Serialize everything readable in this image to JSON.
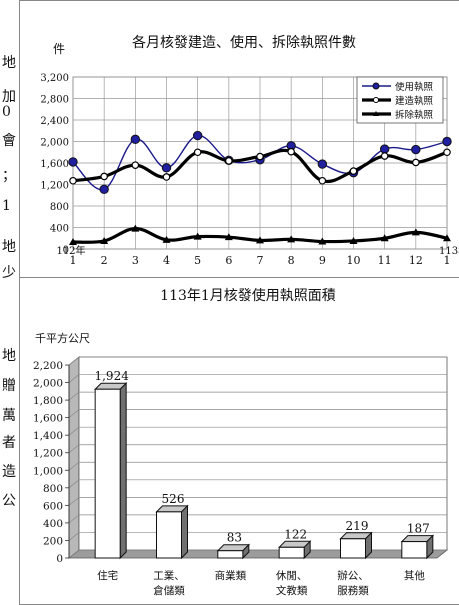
{
  "side_text": [
    "地",
    "加",
    "0",
    "會",
    "；",
    "1",
    "地",
    "少",
    "地",
    "贈",
    "萬",
    "者",
    "造",
    "公"
  ],
  "chart_data": [
    {
      "type": "line",
      "title": "各月核發建造、使用、拆除執照件數",
      "ylabel": "件",
      "ylim": [
        0,
        3200
      ],
      "yticks": [
        0,
        400,
        800,
        1200,
        1600,
        2000,
        2400,
        2800,
        3200
      ],
      "ytick_labels": [
        "0",
        "400",
        "800",
        "1,200",
        "1,600",
        "2,000",
        "2,400",
        "2,800",
        "3,200"
      ],
      "x": [
        1,
        2,
        3,
        4,
        5,
        6,
        7,
        8,
        9,
        10,
        11,
        12,
        13
      ],
      "xtick_labels": [
        "1",
        "2",
        "3",
        "4",
        "5",
        "6",
        "7",
        "8",
        "9",
        "10",
        "11",
        "12",
        "1"
      ],
      "year_labels": [
        {
          "index": 0,
          "text": "112年"
        },
        {
          "index": 12,
          "text": "113年"
        }
      ],
      "grid": true,
      "legend_position": "top-right",
      "series": [
        {
          "name": "使用執照",
          "color": "#1a1a8c",
          "values": [
            1620,
            1110,
            2040,
            1510,
            2110,
            1650,
            1660,
            1920,
            1580,
            1420,
            1860,
            1850,
            2000
          ]
        },
        {
          "name": "建造執照",
          "color": "#000000",
          "values": [
            1270,
            1350,
            1560,
            1340,
            1800,
            1640,
            1720,
            1810,
            1270,
            1450,
            1730,
            1610,
            1800
          ]
        },
        {
          "name": "拆除執照",
          "color": "#000000",
          "values": [
            130,
            150,
            380,
            170,
            230,
            220,
            160,
            180,
            140,
            150,
            200,
            310,
            200
          ]
        }
      ]
    },
    {
      "type": "bar",
      "title": "113年1月核發使用執照面積",
      "ylabel": "千平方公尺",
      "ylim": [
        0,
        2200
      ],
      "yticks": [
        0,
        200,
        400,
        600,
        800,
        1000,
        1200,
        1400,
        1600,
        1800,
        2000,
        2200
      ],
      "ytick_labels": [
        "0",
        "200",
        "400",
        "600",
        "800",
        "1,000",
        "1,200",
        "1,400",
        "1,600",
        "1,800",
        "2,000",
        "2,200"
      ],
      "categories": [
        [
          "住宅"
        ],
        [
          "工業、",
          "倉儲類"
        ],
        [
          "商業類"
        ],
        [
          "休閒、",
          "文教類"
        ],
        [
          "辦公、",
          "服務類"
        ],
        [
          "其他"
        ]
      ],
      "values": [
        1924,
        526,
        83,
        122,
        219,
        187
      ],
      "value_labels": [
        "1,924",
        "526",
        "83",
        "122",
        "219",
        "187"
      ],
      "grid": true
    }
  ]
}
